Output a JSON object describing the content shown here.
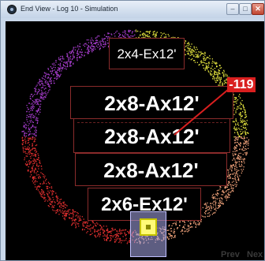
{
  "window": {
    "title": "End View - Log 10 - Simulation",
    "buttons": {
      "minimize": "–",
      "maximize": "□",
      "close": "✕"
    }
  },
  "labels": [
    "2x4-Ex12'",
    "2x8-Ax12'",
    "2x8-Ax12'",
    "2x8-Ax12'",
    "2x6-Ex12'"
  ],
  "marker_value": "-119",
  "nav": {
    "prev": "Prev",
    "next": "Nex"
  },
  "colors": {
    "quadrant_top_left": "#a63dcc",
    "quadrant_top_right": "#e8e840",
    "quadrant_bottom_left": "#e53030",
    "quadrant_bottom_right": "#f0a27a",
    "marker": "#d91f1f",
    "label_border": "#8a2b2b"
  }
}
